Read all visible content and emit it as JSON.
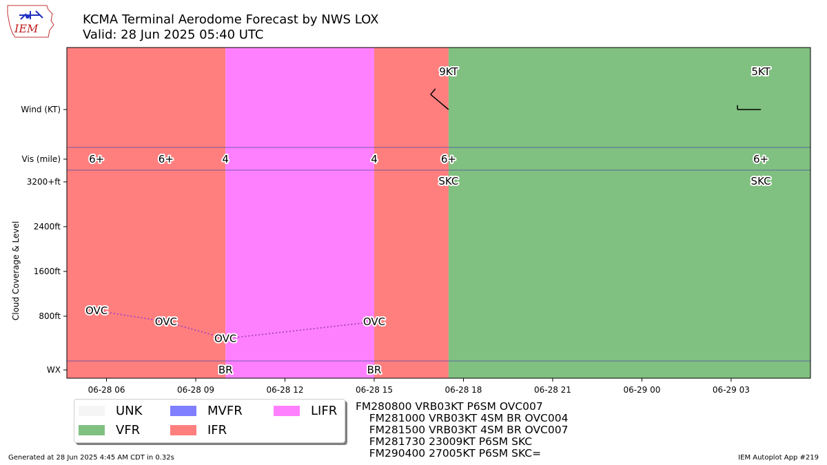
{
  "header": {
    "title": "KCMA Terminal Aerodome Forecast by NWS LOX",
    "subtitle": "Valid: 28 Jun 2025 05:40 UTC"
  },
  "logo": {
    "text": "IEM"
  },
  "chart_data": {
    "type": "timeline",
    "x_range": [
      "2025-06-28 04:40",
      "2025-06-29 05:40"
    ],
    "x_ticks": [
      {
        "t": "2025-06-28 06:00",
        "label": "06-28 06"
      },
      {
        "t": "2025-06-28 09:00",
        "label": "06-28 09"
      },
      {
        "t": "2025-06-28 12:00",
        "label": "06-28 12"
      },
      {
        "t": "2025-06-28 15:00",
        "label": "06-28 15"
      },
      {
        "t": "2025-06-28 18:00",
        "label": "06-28 18"
      },
      {
        "t": "2025-06-28 21:00",
        "label": "06-28 21"
      },
      {
        "t": "2025-06-29 00:00",
        "label": "06-29 00"
      },
      {
        "t": "2025-06-29 03:00",
        "label": "06-29 03"
      }
    ],
    "y_labels": {
      "wind": "Wind (KT)",
      "vis": "Vis (mile)",
      "ceiling_top": "3200+ft",
      "ceiling_ticks": [
        "2400ft",
        "1600ft",
        "800ft"
      ],
      "wx": "WX"
    },
    "ylabel": "Cloud Coverage & Level",
    "category_bands": [
      {
        "start": "2025-06-28 04:40",
        "end": "2025-06-28 10:00",
        "category": "IFR"
      },
      {
        "start": "2025-06-28 10:00",
        "end": "2025-06-28 15:00",
        "category": "LIFR"
      },
      {
        "start": "2025-06-28 15:00",
        "end": "2025-06-28 17:30",
        "category": "IFR"
      },
      {
        "start": "2025-06-28 17:30",
        "end": "2025-06-29 05:40",
        "category": "VFR"
      }
    ],
    "wind": [
      {
        "t": "2025-06-28 17:30",
        "label": "9KT",
        "direction": 230,
        "speed": 9
      },
      {
        "t": "2025-06-29 04:00",
        "label": "5KT",
        "direction": 270,
        "speed": 5
      }
    ],
    "visibility": [
      {
        "t": "2025-06-28 05:40",
        "label": "6+"
      },
      {
        "t": "2025-06-28 08:00",
        "label": "6+"
      },
      {
        "t": "2025-06-28 10:00",
        "label": "4"
      },
      {
        "t": "2025-06-28 15:00",
        "label": "4"
      },
      {
        "t": "2025-06-28 17:30",
        "label": "6+"
      },
      {
        "t": "2025-06-29 04:00",
        "label": "6+"
      }
    ],
    "clouds": [
      {
        "t": "2025-06-28 05:40",
        "label": "OVC",
        "level_ft": 900
      },
      {
        "t": "2025-06-28 08:00",
        "label": "OVC",
        "level_ft": 700
      },
      {
        "t": "2025-06-28 10:00",
        "label": "OVC",
        "level_ft": 400
      },
      {
        "t": "2025-06-28 15:00",
        "label": "OVC",
        "level_ft": 700
      },
      {
        "t": "2025-06-28 17:30",
        "label": "SKC",
        "level_ft": 3200
      },
      {
        "t": "2025-06-29 04:00",
        "label": "SKC",
        "level_ft": 3200
      }
    ],
    "weather": [
      {
        "t": "2025-06-28 10:00",
        "label": "BR"
      },
      {
        "t": "2025-06-28 15:00",
        "label": "BR"
      }
    ],
    "colors": {
      "IFR": "#ff7f7f",
      "LIFR": "#ff80ff",
      "VFR": "#80c080",
      "MVFR": "#7f7fff",
      "UNK": "#f5f5f5",
      "cloud_line": "#a040c0",
      "separator": "#4a4aa8"
    }
  },
  "legend": {
    "items": [
      {
        "label": "UNK",
        "color": "#f5f5f5"
      },
      {
        "label": "MVFR",
        "color": "#7f7fff"
      },
      {
        "label": "LIFR",
        "color": "#ff80ff"
      },
      {
        "label": "VFR",
        "color": "#80c080"
      },
      {
        "label": "IFR",
        "color": "#ff7f7f"
      }
    ]
  },
  "taf_text": {
    "lines": [
      "FM280800 VRB03KT P6SM OVC007",
      "    FM281000 VRB03KT 4SM BR OVC004",
      "    FM281500 VRB03KT 4SM BR OVC007",
      "    FM281730 23009KT P6SM SKC",
      "    FM290400 27005KT P6SM SKC="
    ]
  },
  "footer": {
    "left": "Generated at 28 Jun 2025 4:45 AM CDT in 0.32s",
    "right": "IEM Autoplot App #219"
  }
}
